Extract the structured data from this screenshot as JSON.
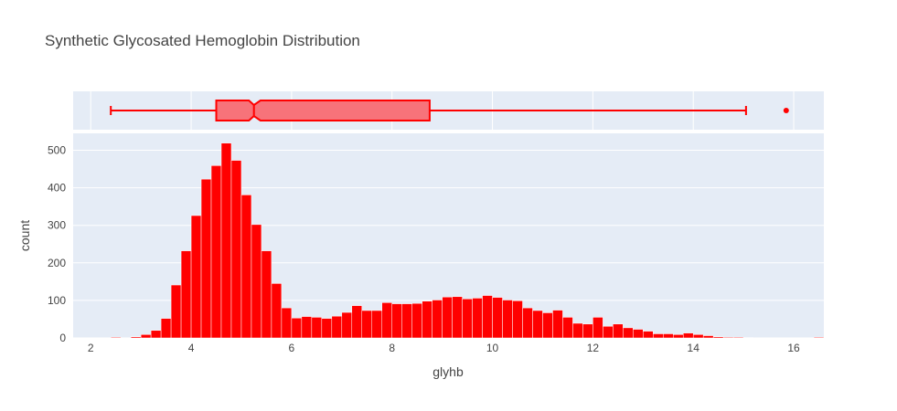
{
  "chart_data": {
    "type": "bar",
    "title": "Synthetic Glycosated Hemoglobin Distribution",
    "xlabel": "glyhb",
    "ylabel": "count",
    "xlim": [
      1.65,
      16.6
    ],
    "ylim": [
      0,
      545
    ],
    "x_ticks": [
      2,
      4,
      6,
      8,
      10,
      12,
      14,
      16
    ],
    "y_ticks": [
      0,
      100,
      200,
      300,
      400,
      500
    ],
    "bin_width": 0.2,
    "bins_start": 2.4,
    "counts": [
      2,
      0,
      3,
      9,
      20,
      52,
      141,
      232,
      326,
      423,
      459,
      519,
      473,
      381,
      302,
      232,
      145,
      80,
      53,
      57,
      55,
      52,
      58,
      68,
      86,
      73,
      73,
      94,
      91,
      91,
      92,
      98,
      101,
      109,
      110,
      104,
      106,
      113,
      108,
      101,
      99,
      80,
      73,
      67,
      74,
      55,
      39,
      37,
      55,
      31,
      37,
      27,
      23,
      18,
      11,
      11,
      9,
      13,
      9,
      6,
      3,
      2,
      2,
      1,
      0,
      0,
      0,
      0,
      0,
      0,
      2
    ],
    "box": {
      "min": 2.4,
      "q1": 4.5,
      "median": 5.25,
      "notch_low": 5.15,
      "notch_high": 5.38,
      "q3": 8.75,
      "max": 15.05,
      "outliers": [
        15.85
      ]
    },
    "colors": {
      "bar": "#ff0000",
      "box_fill": "#f7737a",
      "box_line": "#ff0000",
      "plot_bg": "#e5ecf6",
      "grid": "#ffffff"
    }
  }
}
